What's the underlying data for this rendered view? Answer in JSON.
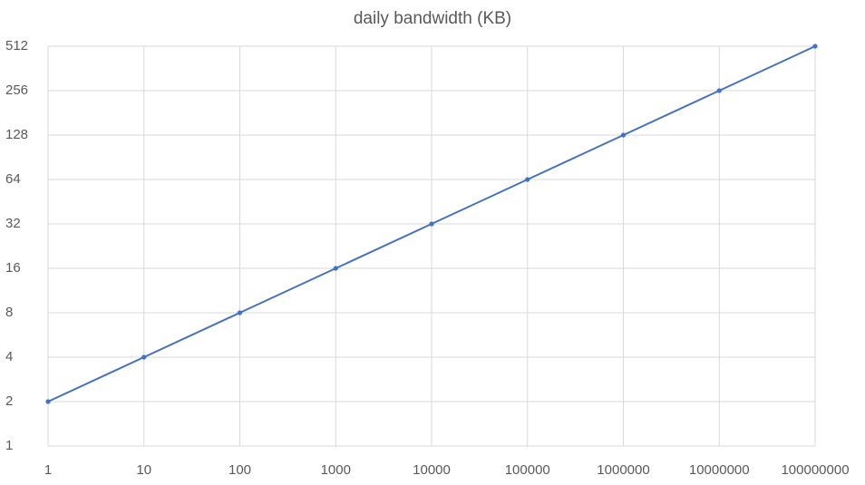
{
  "chart_data": {
    "type": "scatter",
    "title": "daily bandwidth (KB)",
    "x": [
      1,
      10,
      100,
      1000,
      10000,
      100000,
      1000000,
      10000000,
      100000000
    ],
    "values": [
      2,
      4,
      8,
      16,
      32,
      64,
      128,
      256,
      512
    ],
    "color": "#4472c4",
    "line": true,
    "markers": true,
    "xscale": "log",
    "yscale": "log",
    "xlim": [
      1,
      100000000
    ],
    "ylim": [
      1,
      512
    ],
    "xticks": [
      1,
      10,
      100,
      1000,
      10000,
      100000,
      1000000,
      10000000,
      100000000
    ],
    "yticks": [
      1,
      2,
      4,
      8,
      16,
      32,
      64,
      128,
      256,
      512
    ],
    "grid": true
  }
}
